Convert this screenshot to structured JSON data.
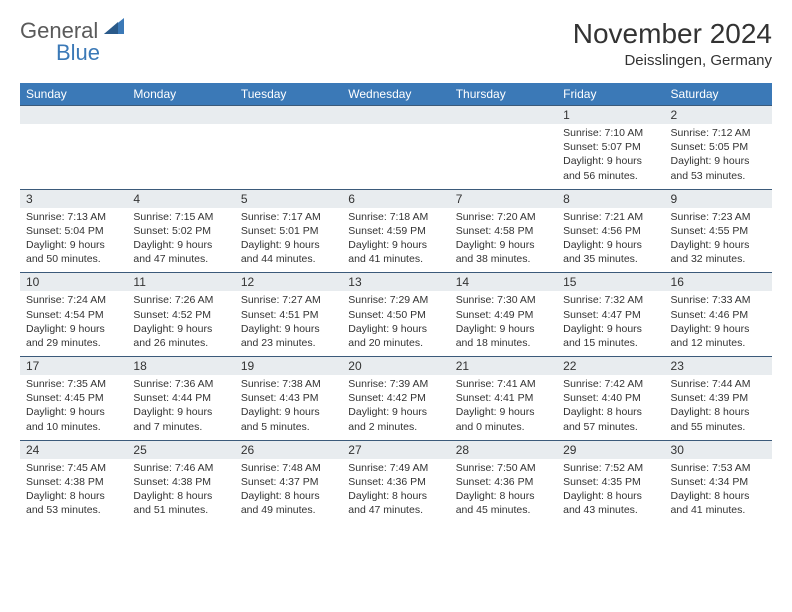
{
  "logo": {
    "general": "General",
    "blue": "Blue"
  },
  "title": "November 2024",
  "location": "Deisslingen, Germany",
  "colors": {
    "header_bg": "#3b79b7",
    "header_text": "#ffffff",
    "daynum_bg": "#e8ecef",
    "cell_text": "#333333",
    "row_border": "#3b5a7a",
    "page_bg": "#ffffff",
    "logo_gray": "#5a5a5a",
    "logo_blue": "#3b79b7"
  },
  "day_headers": [
    "Sunday",
    "Monday",
    "Tuesday",
    "Wednesday",
    "Thursday",
    "Friday",
    "Saturday"
  ],
  "weeks": [
    {
      "nums": [
        "",
        "",
        "",
        "",
        "",
        "1",
        "2"
      ],
      "cells": [
        null,
        null,
        null,
        null,
        null,
        {
          "sunrise": "7:10 AM",
          "sunset": "5:07 PM",
          "daylight": "9 hours and 56 minutes."
        },
        {
          "sunrise": "7:12 AM",
          "sunset": "5:05 PM",
          "daylight": "9 hours and 53 minutes."
        }
      ]
    },
    {
      "nums": [
        "3",
        "4",
        "5",
        "6",
        "7",
        "8",
        "9"
      ],
      "cells": [
        {
          "sunrise": "7:13 AM",
          "sunset": "5:04 PM",
          "daylight": "9 hours and 50 minutes."
        },
        {
          "sunrise": "7:15 AM",
          "sunset": "5:02 PM",
          "daylight": "9 hours and 47 minutes."
        },
        {
          "sunrise": "7:17 AM",
          "sunset": "5:01 PM",
          "daylight": "9 hours and 44 minutes."
        },
        {
          "sunrise": "7:18 AM",
          "sunset": "4:59 PM",
          "daylight": "9 hours and 41 minutes."
        },
        {
          "sunrise": "7:20 AM",
          "sunset": "4:58 PM",
          "daylight": "9 hours and 38 minutes."
        },
        {
          "sunrise": "7:21 AM",
          "sunset": "4:56 PM",
          "daylight": "9 hours and 35 minutes."
        },
        {
          "sunrise": "7:23 AM",
          "sunset": "4:55 PM",
          "daylight": "9 hours and 32 minutes."
        }
      ]
    },
    {
      "nums": [
        "10",
        "11",
        "12",
        "13",
        "14",
        "15",
        "16"
      ],
      "cells": [
        {
          "sunrise": "7:24 AM",
          "sunset": "4:54 PM",
          "daylight": "9 hours and 29 minutes."
        },
        {
          "sunrise": "7:26 AM",
          "sunset": "4:52 PM",
          "daylight": "9 hours and 26 minutes."
        },
        {
          "sunrise": "7:27 AM",
          "sunset": "4:51 PM",
          "daylight": "9 hours and 23 minutes."
        },
        {
          "sunrise": "7:29 AM",
          "sunset": "4:50 PM",
          "daylight": "9 hours and 20 minutes."
        },
        {
          "sunrise": "7:30 AM",
          "sunset": "4:49 PM",
          "daylight": "9 hours and 18 minutes."
        },
        {
          "sunrise": "7:32 AM",
          "sunset": "4:47 PM",
          "daylight": "9 hours and 15 minutes."
        },
        {
          "sunrise": "7:33 AM",
          "sunset": "4:46 PM",
          "daylight": "9 hours and 12 minutes."
        }
      ]
    },
    {
      "nums": [
        "17",
        "18",
        "19",
        "20",
        "21",
        "22",
        "23"
      ],
      "cells": [
        {
          "sunrise": "7:35 AM",
          "sunset": "4:45 PM",
          "daylight": "9 hours and 10 minutes."
        },
        {
          "sunrise": "7:36 AM",
          "sunset": "4:44 PM",
          "daylight": "9 hours and 7 minutes."
        },
        {
          "sunrise": "7:38 AM",
          "sunset": "4:43 PM",
          "daylight": "9 hours and 5 minutes."
        },
        {
          "sunrise": "7:39 AM",
          "sunset": "4:42 PM",
          "daylight": "9 hours and 2 minutes."
        },
        {
          "sunrise": "7:41 AM",
          "sunset": "4:41 PM",
          "daylight": "9 hours and 0 minutes."
        },
        {
          "sunrise": "7:42 AM",
          "sunset": "4:40 PM",
          "daylight": "8 hours and 57 minutes."
        },
        {
          "sunrise": "7:44 AM",
          "sunset": "4:39 PM",
          "daylight": "8 hours and 55 minutes."
        }
      ]
    },
    {
      "nums": [
        "24",
        "25",
        "26",
        "27",
        "28",
        "29",
        "30"
      ],
      "cells": [
        {
          "sunrise": "7:45 AM",
          "sunset": "4:38 PM",
          "daylight": "8 hours and 53 minutes."
        },
        {
          "sunrise": "7:46 AM",
          "sunset": "4:38 PM",
          "daylight": "8 hours and 51 minutes."
        },
        {
          "sunrise": "7:48 AM",
          "sunset": "4:37 PM",
          "daylight": "8 hours and 49 minutes."
        },
        {
          "sunrise": "7:49 AM",
          "sunset": "4:36 PM",
          "daylight": "8 hours and 47 minutes."
        },
        {
          "sunrise": "7:50 AM",
          "sunset": "4:36 PM",
          "daylight": "8 hours and 45 minutes."
        },
        {
          "sunrise": "7:52 AM",
          "sunset": "4:35 PM",
          "daylight": "8 hours and 43 minutes."
        },
        {
          "sunrise": "7:53 AM",
          "sunset": "4:34 PM",
          "daylight": "8 hours and 41 minutes."
        }
      ]
    }
  ],
  "labels": {
    "sunrise_prefix": "Sunrise: ",
    "sunset_prefix": "Sunset: ",
    "daylight_prefix": "Daylight: "
  }
}
